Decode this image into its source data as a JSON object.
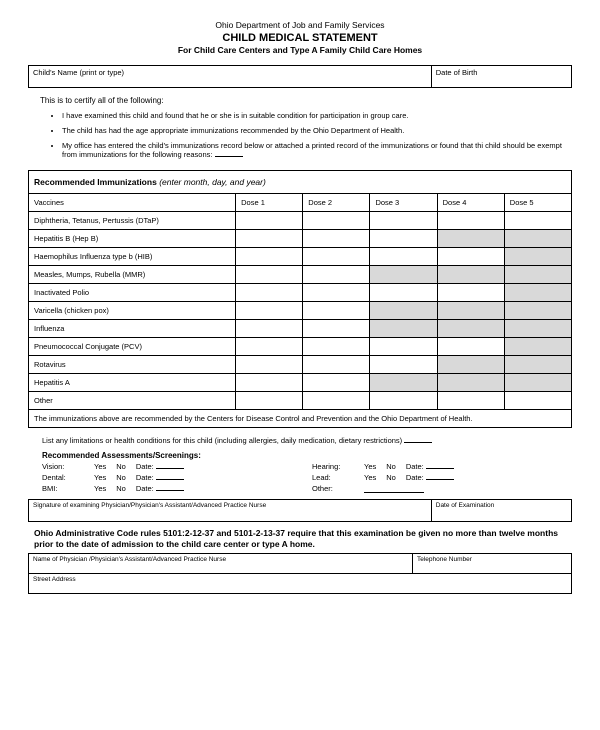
{
  "header": {
    "department": "Ohio Department of Job and Family Services",
    "title": "CHILD MEDICAL STATEMENT",
    "subtitle": "For Child Care Centers and Type A Family Child Care Homes"
  },
  "name_box": {
    "label": "Child's Name (print or type)",
    "dob_label": "Date of Birth"
  },
  "certify_intro": "This is to certify all of the following:",
  "bullets": [
    "I have examined this child and found that he or she is in suitable condition for participation in group care.",
    "The child has had the age appropriate immunizations recommended by the Ohio Department of Health.",
    "My office has entered the child's immunizations record below or attached a printed record of the immunizations or found that thi child should be exempt from immunizations for the following reasons:"
  ],
  "immun": {
    "section_title": "Recommended Immunizations",
    "section_note": "(enter month, day, and year)",
    "col_vaccines": "Vaccines",
    "doses": [
      "Dose 1",
      "Dose 2",
      "Dose 3",
      "Dose 4",
      "Dose 5"
    ],
    "rows": [
      {
        "name": "Diphtheria, Tetanus, Pertussis (DTaP)",
        "shaded": []
      },
      {
        "name": "Hepatitis B (Hep B)",
        "shaded": [
          3,
          4
        ]
      },
      {
        "name": "Haemophilus Influenza  type b (HIB)",
        "shaded": [
          4
        ]
      },
      {
        "name": "Measles, Mumps, Rubella (MMR)",
        "shaded": [
          2,
          3,
          4
        ]
      },
      {
        "name": "Inactivated Polio",
        "shaded": [
          4
        ]
      },
      {
        "name": "Varicella (chicken pox)",
        "shaded": [
          2,
          3,
          4
        ]
      },
      {
        "name": "Influenza",
        "shaded": [
          2,
          3,
          4
        ]
      },
      {
        "name": "Pneumococcal Conjugate (PCV)",
        "shaded": [
          4
        ]
      },
      {
        "name": "Rotavirus",
        "shaded": [
          3,
          4
        ]
      },
      {
        "name": "Hepatitis A",
        "shaded": [
          2,
          3,
          4
        ]
      },
      {
        "name": "Other",
        "shaded": []
      }
    ],
    "footnote": "The immunizations above are recommended by the Centers for Disease Control and Prevention and the Ohio Department of Health."
  },
  "limitations_text": "List any limitations or health conditions for this child (including allergies, daily medication, dietary restrictions)",
  "assess": {
    "heading": "Recommended Assessments/Screenings:",
    "items": [
      {
        "label": "Vision:",
        "yes": "Yes",
        "no": "No",
        "date": "Date:"
      },
      {
        "label": "Hearing:",
        "yes": "Yes",
        "no": "No",
        "date": "Date:"
      },
      {
        "label": "Dental:",
        "yes": "Yes",
        "no": "No",
        "date": "Date:"
      },
      {
        "label": "Lead:",
        "yes": "Yes",
        "no": "No",
        "date": "Date:"
      },
      {
        "label": "BMI:",
        "yes": "Yes",
        "no": "No",
        "date": "Date:"
      },
      {
        "label": "Other:",
        "yes": "",
        "no": "",
        "date": ""
      }
    ]
  },
  "sig": {
    "label": "Signature of examining Physician/Physician's Assistant/Advanced Practice Nurse",
    "date_label": "Date of Examination"
  },
  "rule_text": "Ohio Administrative Code rules 5101:2-12-37 and 5101-2-13-37 require that this examination be given no more than twelve months prior to the date of admission to the child care center or type A home.",
  "phys": {
    "label": "Name of Physician /Physician's Assistant/Advanced Practice Nurse",
    "phone_label": "Telephone Number"
  },
  "addr_label": "Street Address"
}
